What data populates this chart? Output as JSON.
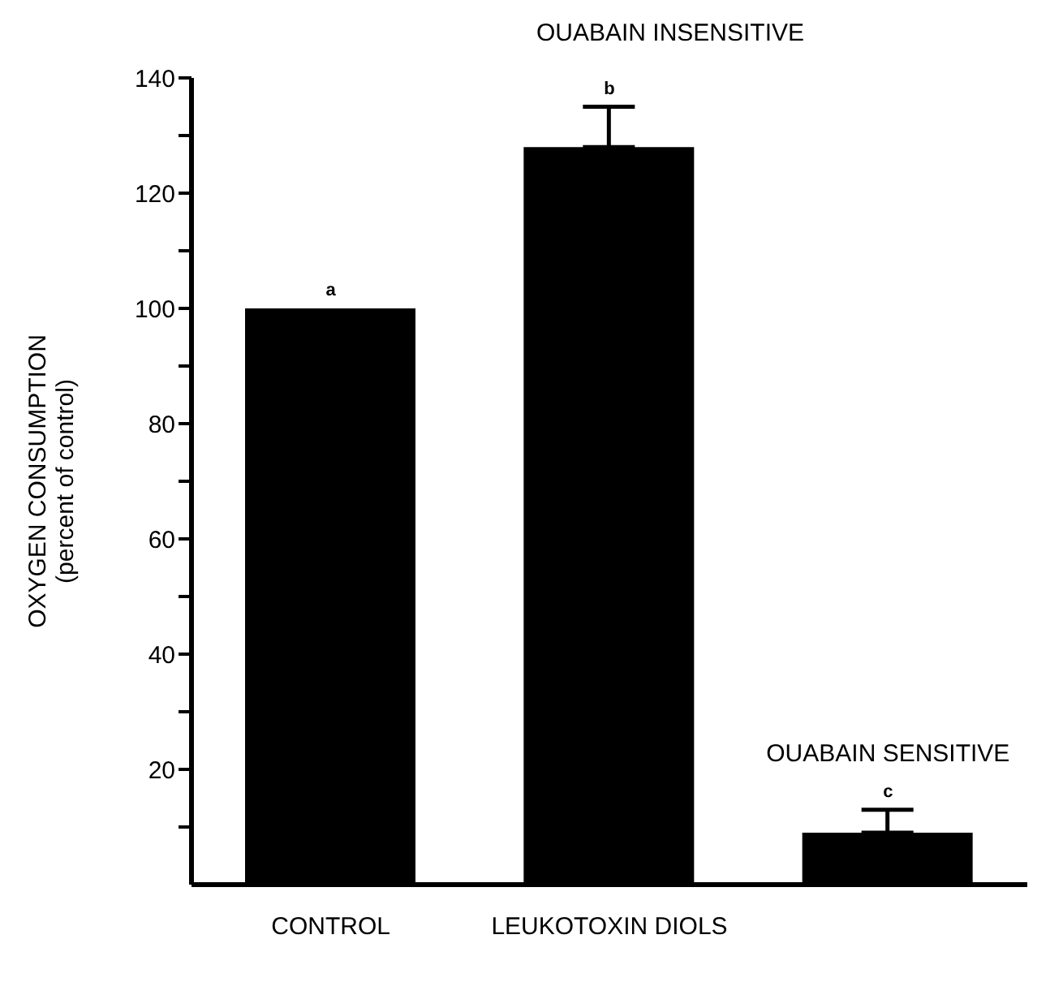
{
  "chart_data": {
    "type": "bar",
    "title": "OUABAIN INSENSITIVE",
    "ylabel": "OXYGEN CONSUMPTION\n(percent of control)",
    "categories": [
      "CONTROL",
      "LEUKOTOXIN DIOLS",
      null
    ],
    "values": [
      100,
      128,
      9
    ],
    "errors": [
      null,
      7,
      4
    ],
    "color": "#000000",
    "ylim": [
      0,
      140
    ],
    "yticks": [
      {
        "value": 10,
        "label": null
      },
      20,
      {
        "value": 30,
        "label": null
      },
      40,
      {
        "value": 50,
        "label": null
      },
      60,
      {
        "value": 70,
        "label": null
      },
      80,
      {
        "value": 90,
        "label": null
      },
      100,
      {
        "value": 110,
        "label": null
      },
      120,
      {
        "value": 130,
        "label": null
      },
      140
    ],
    "annotations": [
      "a",
      "b",
      "c",
      "OUABAIN SENSITIVE"
    ]
  }
}
